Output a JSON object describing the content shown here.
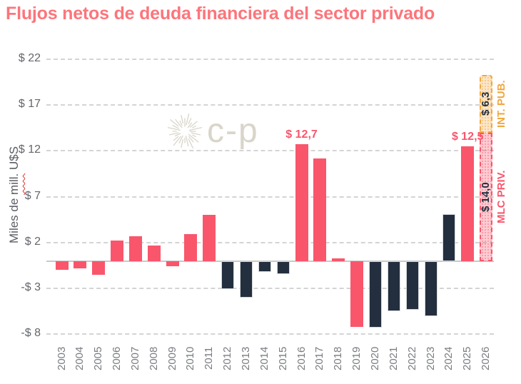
{
  "chart_data": {
    "type": "bar",
    "title": "Flujos netos de deuda financiera del sector privado",
    "ylabel": "Miles de mill. U$S",
    "ylabel_parts": {
      "pre": "Miles de ",
      "wavy": "mill.",
      "post": " U$S"
    },
    "watermark": "c-p",
    "grid": "horizontal-dashed",
    "legend_position": "none",
    "ylim": [
      -9,
      23
    ],
    "y_ticks": [
      {
        "label": "$ 22",
        "value": 22
      },
      {
        "label": "$ 17",
        "value": 17
      },
      {
        "label": "$ 12",
        "value": 12
      },
      {
        "label": "$ 7",
        "value": 7
      },
      {
        "label": "$ 2",
        "value": 2
      },
      {
        "label": "-$ 3",
        "value": -3
      },
      {
        "label": "-$ 8",
        "value": -8
      }
    ],
    "categories": [
      "2003",
      "2004",
      "2005",
      "2006",
      "2007",
      "2008",
      "2009",
      "2010",
      "2011",
      "2012",
      "2013",
      "2014",
      "2015",
      "2016",
      "2017",
      "2018",
      "2019",
      "2020",
      "2021",
      "2022",
      "2023",
      "2024",
      "2025",
      "2026"
    ],
    "bars": [
      {
        "year": "2003",
        "value": -1.0,
        "color": "pink"
      },
      {
        "year": "2004",
        "value": -0.8,
        "color": "pink"
      },
      {
        "year": "2005",
        "value": -1.5,
        "color": "pink"
      },
      {
        "year": "2006",
        "value": 2.2,
        "color": "pink"
      },
      {
        "year": "2007",
        "value": 2.7,
        "color": "pink"
      },
      {
        "year": "2008",
        "value": 1.7,
        "color": "pink"
      },
      {
        "year": "2009",
        "value": -0.6,
        "color": "pink"
      },
      {
        "year": "2010",
        "value": 2.9,
        "color": "pink"
      },
      {
        "year": "2011",
        "value": 5.0,
        "color": "pink"
      },
      {
        "year": "2012",
        "value": -3.1,
        "color": "navy"
      },
      {
        "year": "2013",
        "value": -4.0,
        "color": "navy"
      },
      {
        "year": "2014",
        "value": -1.2,
        "color": "navy"
      },
      {
        "year": "2015",
        "value": -1.4,
        "color": "navy"
      },
      {
        "year": "2016",
        "value": 12.7,
        "color": "pink",
        "label": "$ 12,7"
      },
      {
        "year": "2017",
        "value": 11.2,
        "color": "pink"
      },
      {
        "year": "2018",
        "value": 0.3,
        "color": "pink"
      },
      {
        "year": "2019",
        "value": -7.2,
        "color": "pink"
      },
      {
        "year": "2020",
        "value": -7.3,
        "color": "navy"
      },
      {
        "year": "2021",
        "value": -5.5,
        "color": "navy"
      },
      {
        "year": "2022",
        "value": -5.3,
        "color": "navy"
      },
      {
        "year": "2023",
        "value": -6.0,
        "color": "navy"
      },
      {
        "year": "2024",
        "value": 5.1,
        "color": "navy"
      },
      {
        "year": "2025",
        "value": 12.5,
        "color": "pink",
        "label": "$ 12,5"
      }
    ],
    "stacked_bar_2026": {
      "year": "2026",
      "segments": [
        {
          "name": "MLC PRIV.",
          "value": 14.0,
          "value_label": "$ 14,0",
          "style": "pink-hatched"
        },
        {
          "name": "INT. PUB.",
          "value": 6.3,
          "value_label": "$ 6,3",
          "style": "orange-hatched"
        }
      ]
    },
    "colors": {
      "title": "#FC757B",
      "bar_pink": "#F9566C",
      "bar_navy": "#232F3E",
      "hatch_pink_border": "#F9566C",
      "hatch_orange_border": "#F2A73D",
      "grid": "#D4D4D4",
      "axis_text": "#63666B",
      "watermark": "#D9D5CA"
    }
  }
}
